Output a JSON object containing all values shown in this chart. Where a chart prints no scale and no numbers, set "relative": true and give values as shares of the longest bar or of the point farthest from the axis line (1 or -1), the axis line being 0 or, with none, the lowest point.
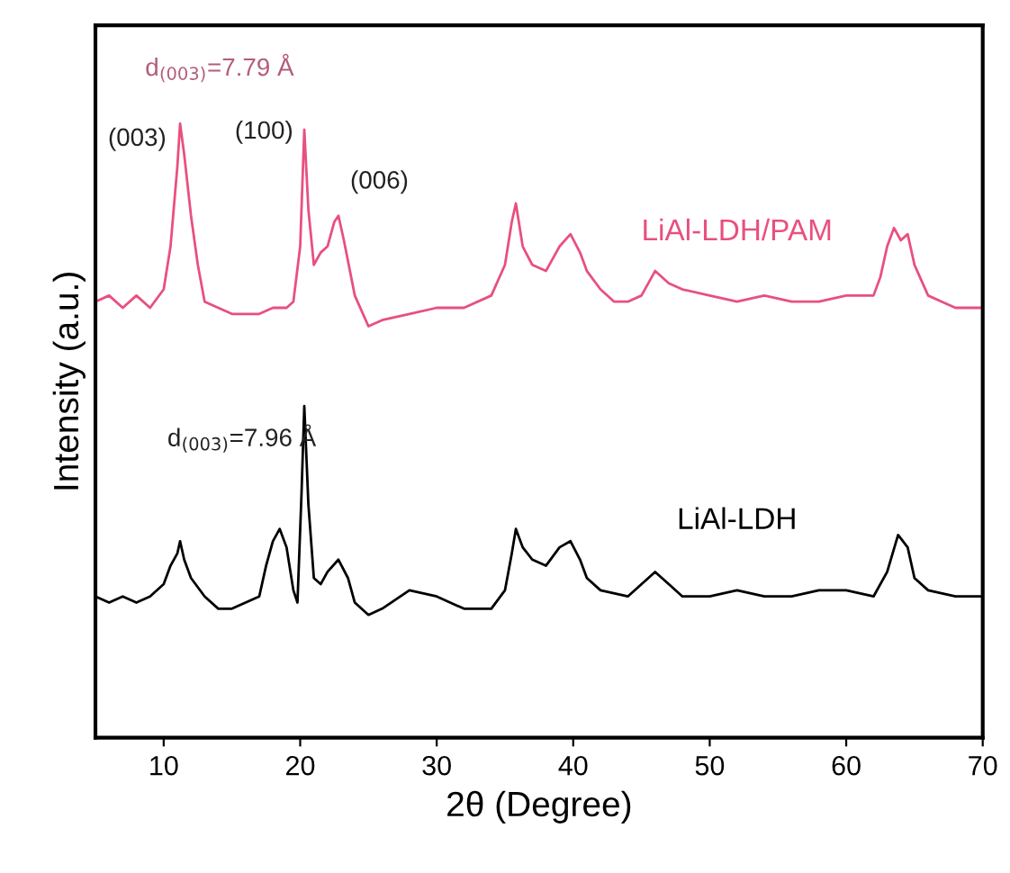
{
  "chart_data": {
    "type": "line",
    "relative": true,
    "xlabel": "2θ (Degree)",
    "ylabel": "Intensity (a.u.)",
    "xlim": [
      5,
      70
    ],
    "xticks": [
      10,
      20,
      30,
      40,
      50,
      60,
      70
    ],
    "tick_labels": "x",
    "grid": false,
    "legend": false,
    "marker": "none",
    "line_style": "solid",
    "series": [
      {
        "name": "LiAl-LDH/PAM",
        "color": "#e8507e",
        "x": [
          5,
          6,
          7,
          8,
          9,
          10,
          10.5,
          11,
          11.2,
          11.5,
          12,
          12.5,
          13,
          14,
          15,
          16,
          17,
          18,
          19,
          19.5,
          20,
          20.3,
          20.6,
          21,
          21.5,
          22,
          22.5,
          22.8,
          23.2,
          24,
          25,
          26,
          28,
          30,
          32,
          34,
          35,
          35.5,
          35.8,
          36.3,
          37,
          38,
          39,
          39.8,
          40.5,
          41,
          42,
          43,
          44,
          45,
          46,
          47,
          48,
          50,
          52,
          54,
          56,
          58,
          60,
          62,
          62.5,
          63,
          63.5,
          64,
          64.5,
          65,
          66,
          67,
          68,
          69,
          70
        ],
        "values": [
          0.71,
          0.72,
          0.7,
          0.72,
          0.7,
          0.73,
          0.8,
          0.93,
          1.0,
          0.95,
          0.85,
          0.77,
          0.71,
          0.7,
          0.69,
          0.69,
          0.69,
          0.7,
          0.7,
          0.71,
          0.8,
          0.99,
          0.86,
          0.77,
          0.79,
          0.8,
          0.84,
          0.85,
          0.81,
          0.72,
          0.67,
          0.68,
          0.69,
          0.7,
          0.7,
          0.72,
          0.77,
          0.84,
          0.87,
          0.8,
          0.77,
          0.76,
          0.8,
          0.82,
          0.79,
          0.76,
          0.73,
          0.71,
          0.71,
          0.72,
          0.76,
          0.74,
          0.73,
          0.72,
          0.71,
          0.72,
          0.71,
          0.71,
          0.72,
          0.72,
          0.75,
          0.8,
          0.83,
          0.81,
          0.82,
          0.77,
          0.72,
          0.71,
          0.7,
          0.7,
          0.7
        ]
      },
      {
        "name": "LiAl-LDH",
        "color": "#000000",
        "x": [
          5,
          6,
          7,
          8,
          9,
          10,
          10.5,
          11,
          11.2,
          11.5,
          12,
          13,
          14,
          15,
          16,
          17,
          17.5,
          18,
          18.5,
          19,
          19.5,
          19.8,
          20.1,
          20.3,
          20.6,
          21,
          21.5,
          22,
          22.8,
          23.5,
          24,
          25,
          26,
          28,
          30,
          32,
          33,
          34,
          35,
          35.5,
          35.8,
          36.3,
          37,
          38,
          39,
          39.8,
          40.5,
          41,
          42,
          44,
          46,
          47,
          48,
          50,
          52,
          54,
          56,
          58,
          60,
          62,
          63,
          63.8,
          64.5,
          65,
          66,
          68,
          70
        ],
        "values": [
          0.23,
          0.22,
          0.23,
          0.22,
          0.23,
          0.25,
          0.28,
          0.3,
          0.32,
          0.29,
          0.26,
          0.23,
          0.21,
          0.21,
          0.22,
          0.23,
          0.28,
          0.32,
          0.34,
          0.31,
          0.24,
          0.22,
          0.4,
          0.54,
          0.38,
          0.26,
          0.25,
          0.27,
          0.29,
          0.26,
          0.22,
          0.2,
          0.21,
          0.24,
          0.23,
          0.21,
          0.21,
          0.21,
          0.24,
          0.3,
          0.34,
          0.31,
          0.29,
          0.28,
          0.31,
          0.32,
          0.29,
          0.26,
          0.24,
          0.23,
          0.27,
          0.25,
          0.23,
          0.23,
          0.24,
          0.23,
          0.23,
          0.24,
          0.24,
          0.23,
          0.27,
          0.33,
          0.31,
          0.26,
          0.24,
          0.23,
          0.23
        ]
      }
    ],
    "annotations": [
      "d$_{(003)}$=7.79 Å",
      "(003)",
      "(100)",
      "(006)",
      "d$_{(003)}$=7.96 Å"
    ]
  }
}
